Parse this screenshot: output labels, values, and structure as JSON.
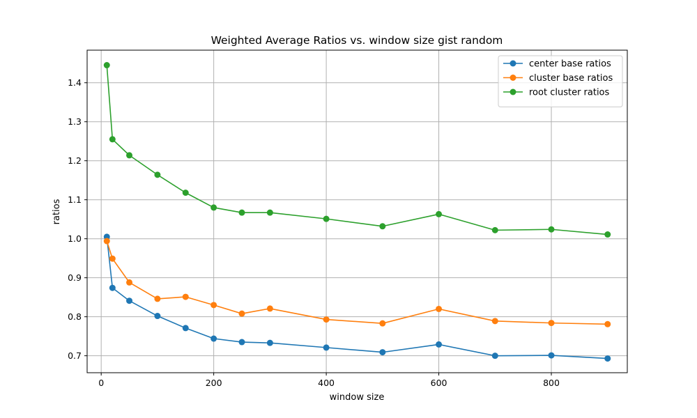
{
  "chart_data": {
    "type": "line",
    "title": "Weighted Average Ratios vs. window size gist random",
    "xlabel": "window size",
    "ylabel": "ratios",
    "xlim": [
      -25,
      935
    ],
    "ylim": [
      0.6565,
      1.4835
    ],
    "x_ticks": [
      0,
      200,
      400,
      600,
      800
    ],
    "y_ticks": [
      0.7,
      0.8,
      0.9,
      1.0,
      1.1,
      1.2,
      1.3,
      1.4
    ],
    "x_tick_labels": [
      "0",
      "200",
      "400",
      "600",
      "800"
    ],
    "y_tick_labels": [
      "0.7",
      "0.8",
      "0.9",
      "1.0",
      "1.1",
      "1.2",
      "1.3",
      "1.4"
    ],
    "grid": true,
    "legend_position": "top-right",
    "x": [
      10,
      20,
      50,
      100,
      150,
      200,
      250,
      300,
      400,
      500,
      600,
      700,
      800,
      900
    ],
    "series": [
      {
        "name": "center base ratios",
        "color": "#1f77b4",
        "values": [
          1.005,
          0.874,
          0.841,
          0.802,
          0.771,
          0.744,
          0.735,
          0.733,
          0.721,
          0.709,
          0.729,
          0.7,
          0.701,
          0.693
        ]
      },
      {
        "name": "cluster base ratios",
        "color": "#ff7f0e",
        "values": [
          0.994,
          0.949,
          0.888,
          0.846,
          0.851,
          0.83,
          0.808,
          0.821,
          0.793,
          0.783,
          0.82,
          0.789,
          0.784,
          0.781
        ]
      },
      {
        "name": "root cluster ratios",
        "color": "#2ca02c",
        "values": [
          1.445,
          1.255,
          1.214,
          1.164,
          1.118,
          1.08,
          1.067,
          1.067,
          1.051,
          1.032,
          1.063,
          1.022,
          1.024,
          1.011
        ]
      }
    ]
  }
}
